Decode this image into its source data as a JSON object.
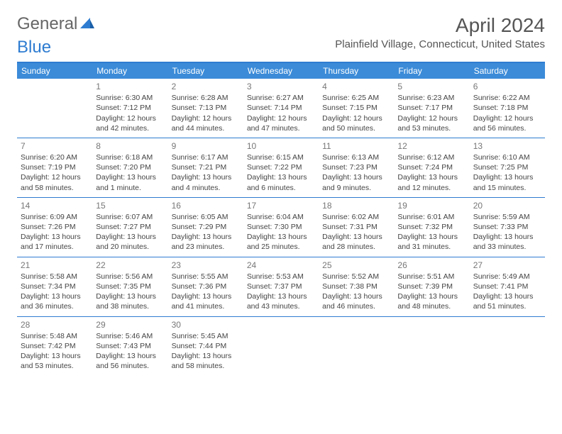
{
  "logo": {
    "text1": "General",
    "text2": "Blue"
  },
  "title": "April 2024",
  "location": "Plainfield Village, Connecticut, United States",
  "colors": {
    "header_bg": "#3b8bd8",
    "header_border": "#2e7cd1",
    "text": "#444444",
    "muted": "#777777",
    "white": "#ffffff"
  },
  "days_of_week": [
    "Sunday",
    "Monday",
    "Tuesday",
    "Wednesday",
    "Thursday",
    "Friday",
    "Saturday"
  ],
  "weeks": [
    [
      null,
      {
        "d": "1",
        "sr": "6:30 AM",
        "ss": "7:12 PM",
        "dl": "12 hours and 42 minutes."
      },
      {
        "d": "2",
        "sr": "6:28 AM",
        "ss": "7:13 PM",
        "dl": "12 hours and 44 minutes."
      },
      {
        "d": "3",
        "sr": "6:27 AM",
        "ss": "7:14 PM",
        "dl": "12 hours and 47 minutes."
      },
      {
        "d": "4",
        "sr": "6:25 AM",
        "ss": "7:15 PM",
        "dl": "12 hours and 50 minutes."
      },
      {
        "d": "5",
        "sr": "6:23 AM",
        "ss": "7:17 PM",
        "dl": "12 hours and 53 minutes."
      },
      {
        "d": "6",
        "sr": "6:22 AM",
        "ss": "7:18 PM",
        "dl": "12 hours and 56 minutes."
      }
    ],
    [
      {
        "d": "7",
        "sr": "6:20 AM",
        "ss": "7:19 PM",
        "dl": "12 hours and 58 minutes."
      },
      {
        "d": "8",
        "sr": "6:18 AM",
        "ss": "7:20 PM",
        "dl": "13 hours and 1 minute."
      },
      {
        "d": "9",
        "sr": "6:17 AM",
        "ss": "7:21 PM",
        "dl": "13 hours and 4 minutes."
      },
      {
        "d": "10",
        "sr": "6:15 AM",
        "ss": "7:22 PM",
        "dl": "13 hours and 6 minutes."
      },
      {
        "d": "11",
        "sr": "6:13 AM",
        "ss": "7:23 PM",
        "dl": "13 hours and 9 minutes."
      },
      {
        "d": "12",
        "sr": "6:12 AM",
        "ss": "7:24 PM",
        "dl": "13 hours and 12 minutes."
      },
      {
        "d": "13",
        "sr": "6:10 AM",
        "ss": "7:25 PM",
        "dl": "13 hours and 15 minutes."
      }
    ],
    [
      {
        "d": "14",
        "sr": "6:09 AM",
        "ss": "7:26 PM",
        "dl": "13 hours and 17 minutes."
      },
      {
        "d": "15",
        "sr": "6:07 AM",
        "ss": "7:27 PM",
        "dl": "13 hours and 20 minutes."
      },
      {
        "d": "16",
        "sr": "6:05 AM",
        "ss": "7:29 PM",
        "dl": "13 hours and 23 minutes."
      },
      {
        "d": "17",
        "sr": "6:04 AM",
        "ss": "7:30 PM",
        "dl": "13 hours and 25 minutes."
      },
      {
        "d": "18",
        "sr": "6:02 AM",
        "ss": "7:31 PM",
        "dl": "13 hours and 28 minutes."
      },
      {
        "d": "19",
        "sr": "6:01 AM",
        "ss": "7:32 PM",
        "dl": "13 hours and 31 minutes."
      },
      {
        "d": "20",
        "sr": "5:59 AM",
        "ss": "7:33 PM",
        "dl": "13 hours and 33 minutes."
      }
    ],
    [
      {
        "d": "21",
        "sr": "5:58 AM",
        "ss": "7:34 PM",
        "dl": "13 hours and 36 minutes."
      },
      {
        "d": "22",
        "sr": "5:56 AM",
        "ss": "7:35 PM",
        "dl": "13 hours and 38 minutes."
      },
      {
        "d": "23",
        "sr": "5:55 AM",
        "ss": "7:36 PM",
        "dl": "13 hours and 41 minutes."
      },
      {
        "d": "24",
        "sr": "5:53 AM",
        "ss": "7:37 PM",
        "dl": "13 hours and 43 minutes."
      },
      {
        "d": "25",
        "sr": "5:52 AM",
        "ss": "7:38 PM",
        "dl": "13 hours and 46 minutes."
      },
      {
        "d": "26",
        "sr": "5:51 AM",
        "ss": "7:39 PM",
        "dl": "13 hours and 48 minutes."
      },
      {
        "d": "27",
        "sr": "5:49 AM",
        "ss": "7:41 PM",
        "dl": "13 hours and 51 minutes."
      }
    ],
    [
      {
        "d": "28",
        "sr": "5:48 AM",
        "ss": "7:42 PM",
        "dl": "13 hours and 53 minutes."
      },
      {
        "d": "29",
        "sr": "5:46 AM",
        "ss": "7:43 PM",
        "dl": "13 hours and 56 minutes."
      },
      {
        "d": "30",
        "sr": "5:45 AM",
        "ss": "7:44 PM",
        "dl": "13 hours and 58 minutes."
      },
      null,
      null,
      null,
      null
    ]
  ],
  "labels": {
    "sunrise": "Sunrise:",
    "sunset": "Sunset:",
    "daylight": "Daylight:"
  }
}
